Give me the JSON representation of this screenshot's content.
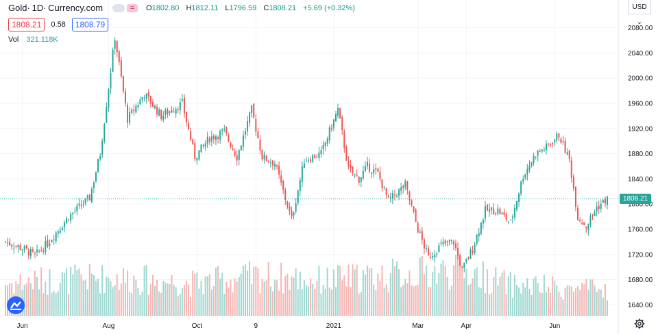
{
  "header": {
    "symbol": "Gold",
    "interval": "1D",
    "source": "Currency.com",
    "open_key": "O",
    "open": "1802.80",
    "high_key": "H",
    "high": "1812.11",
    "low_key": "L",
    "low": "1796.59",
    "close_key": "C",
    "close": "1808.21",
    "change": "+5.69 (+0.32%)",
    "sell_price": "1808.21",
    "spread": "0.58",
    "buy_price": "1808.79",
    "vol_label": "Vol",
    "vol_value": "321.118K",
    "currency": "USD",
    "currency_chevron": "⌄"
  },
  "last_price_label": "1808.21",
  "colors": {
    "up": "#26a69a",
    "down": "#ef5350",
    "vol_up": "#9ed7d1",
    "vol_down": "#f5b5b3",
    "grid": "#f0f3fa",
    "last_line": "#26a69a",
    "logo": "#2962ff"
  },
  "icons": {
    "logo": "tradingview-logo-icon",
    "settings": "gear-icon",
    "visibility": "eye-icon"
  },
  "chart_data": {
    "type": "candlestick",
    "title": "Gold 1D Currency.com",
    "ylim": [
      1622,
      2098
    ],
    "y_ticks": [
      1640,
      1680,
      1720,
      1760,
      1800,
      1840,
      1880,
      1920,
      1960,
      2000,
      2040,
      2080
    ],
    "y_tick_labels": [
      "1640.00",
      "1680.00",
      "1720.00",
      "1760.00",
      "1800.00",
      "1840.00",
      "1880.00",
      "1920.00",
      "1960.00",
      "2000.00",
      "2040.00",
      "2080.00"
    ],
    "x_tick_labels": [
      {
        "label": "Jun",
        "index": 8
      },
      {
        "label": "Aug",
        "index": 49
      },
      {
        "label": "Oct",
        "index": 91
      },
      {
        "label": "9",
        "index": 119
      },
      {
        "label": "2021",
        "index": 156
      },
      {
        "label": "Mar",
        "index": 196
      },
      {
        "label": "Apr",
        "index": 219
      },
      {
        "label": "Jun",
        "index": 261
      }
    ],
    "last_price": 1808.21,
    "close_anchors": [
      [
        0,
        1740
      ],
      [
        8,
        1730
      ],
      [
        14,
        1718
      ],
      [
        20,
        1738
      ],
      [
        30,
        1780
      ],
      [
        40,
        1810
      ],
      [
        45,
        1880
      ],
      [
        52,
        2065
      ],
      [
        58,
        1935
      ],
      [
        66,
        1975
      ],
      [
        74,
        1940
      ],
      [
        84,
        1960
      ],
      [
        90,
        1875
      ],
      [
        97,
        1905
      ],
      [
        104,
        1915
      ],
      [
        110,
        1875
      ],
      [
        117,
        1950
      ],
      [
        122,
        1875
      ],
      [
        128,
        1865
      ],
      [
        132,
        1820
      ],
      [
        136,
        1775
      ],
      [
        142,
        1870
      ],
      [
        150,
        1880
      ],
      [
        158,
        1950
      ],
      [
        163,
        1855
      ],
      [
        168,
        1840
      ],
      [
        172,
        1860
      ],
      [
        177,
        1848
      ],
      [
        182,
        1805
      ],
      [
        190,
        1830
      ],
      [
        196,
        1760
      ],
      [
        201,
        1715
      ],
      [
        207,
        1735
      ],
      [
        213,
        1740
      ],
      [
        217,
        1695
      ],
      [
        222,
        1730
      ],
      [
        228,
        1790
      ],
      [
        234,
        1790
      ],
      [
        240,
        1770
      ],
      [
        246,
        1845
      ],
      [
        252,
        1880
      ],
      [
        257,
        1890
      ],
      [
        263,
        1910
      ],
      [
        268,
        1870
      ],
      [
        272,
        1780
      ],
      [
        276,
        1765
      ],
      [
        281,
        1795
      ],
      [
        286,
        1808
      ]
    ],
    "volume_anchors": [
      [
        0,
        230
      ],
      [
        20,
        250
      ],
      [
        50,
        270
      ],
      [
        90,
        230
      ],
      [
        120,
        280
      ],
      [
        150,
        250
      ],
      [
        196,
        300
      ],
      [
        217,
        320
      ],
      [
        240,
        220
      ],
      [
        270,
        190
      ],
      [
        286,
        180
      ]
    ],
    "volume_max": 500
  }
}
